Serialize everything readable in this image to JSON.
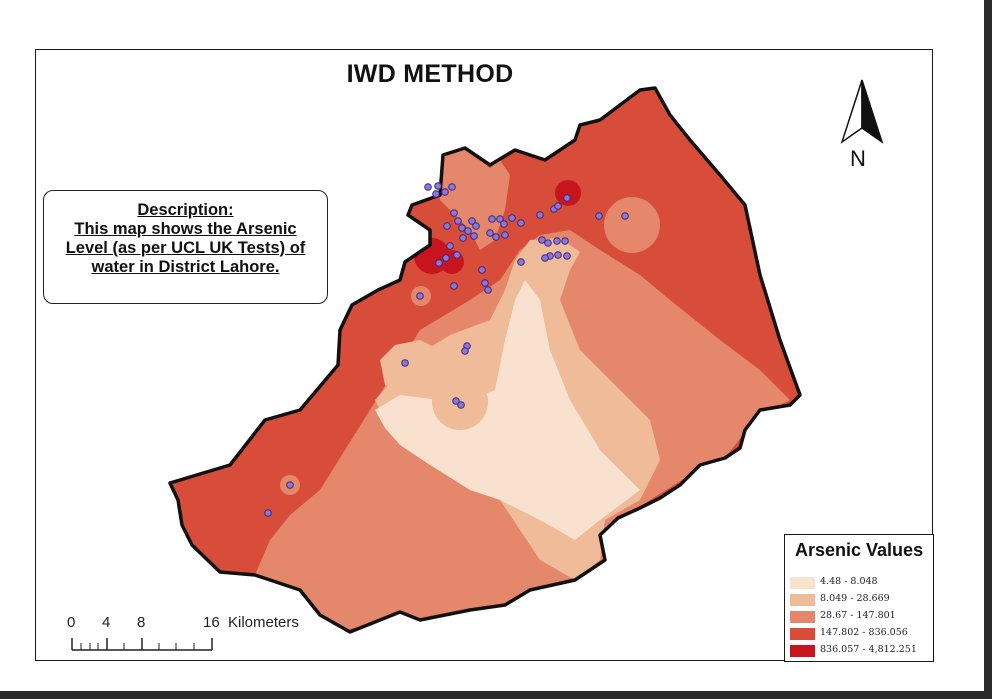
{
  "map": {
    "title": "IWD METHOD",
    "description": {
      "line1": "Description:",
      "line2": "This map shows the Arsenic",
      "line3": "Level (as per UCL UK Tests) of",
      "line4": "water in District Lahore."
    },
    "north_arrow": {
      "label": "N"
    }
  },
  "legend": {
    "title": "Arsenic Values",
    "items": [
      {
        "label": "4.48 - 8.048",
        "color": "#f9e1cf"
      },
      {
        "label": "8.049 - 28.669",
        "color": "#efbb98"
      },
      {
        "label": "28.67 - 147.801",
        "color": "#e4876a"
      },
      {
        "label": "147.802 - 836.056",
        "color": "#d74d3a"
      },
      {
        "label": "836.057 - 4,812.251",
        "color": "#c8151d"
      }
    ]
  },
  "scale_bar": {
    "ticks": [
      "0",
      "4",
      "8",
      "16"
    ],
    "unit": "Kilometers"
  },
  "colors": {
    "sample_point_fill": "#8c76d8",
    "sample_point_stroke": "#3a2a7a",
    "boundary": "#111111"
  }
}
